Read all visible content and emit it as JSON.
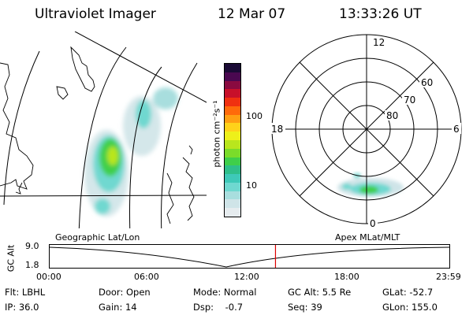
{
  "header": {
    "instrument": "Ultraviolet Imager",
    "date": "12 Mar 07",
    "time": "13:33:26 UT"
  },
  "panels": {
    "left_caption": "Geographic Lat/Lon",
    "right_caption": "Apex MLat/MLT"
  },
  "colorbar": {
    "label": "photon cm⁻²s⁻¹",
    "tick_100": "100",
    "tick_10": "10",
    "colors": [
      "#e6ecef",
      "#cfe4e8",
      "#a8dede",
      "#6fd8d0",
      "#3ec9b8",
      "#2fbf8a",
      "#3fcf4a",
      "#7bdc2a",
      "#b9e61d",
      "#eef01a",
      "#ffd21a",
      "#ff9f12",
      "#ff6a0a",
      "#f03010",
      "#c8102a",
      "#8a0a40",
      "#4a0850",
      "#1a0a35"
    ]
  },
  "polar": {
    "mlt_top": "12",
    "mlt_left": "18",
    "mlt_right": "6",
    "mlt_bottom": "0",
    "lat_60": "60",
    "lat_70": "70",
    "lat_80": "80"
  },
  "altitude_plot": {
    "y_label": "GC Alt",
    "y_top": "9.0",
    "y_bottom": "1.8",
    "x_ticks": [
      "00:00",
      "06:00",
      "12:00",
      "18:00",
      "23:59"
    ],
    "current_time_fraction": 0.565,
    "marker_color": "#dd0000"
  },
  "info": {
    "flt": "Flt: LBHL",
    "ip": "IP: 36.0",
    "door": "Door: Open",
    "gain": "Gain: 14",
    "mode": "Mode: Normal",
    "dsp": "Dsp:    -0.7",
    "gc_alt": "GC Alt: 5.5 Re",
    "seq": "Seq: 39",
    "glat": "GLat: -52.7",
    "glon": "GLon: 155.0"
  }
}
